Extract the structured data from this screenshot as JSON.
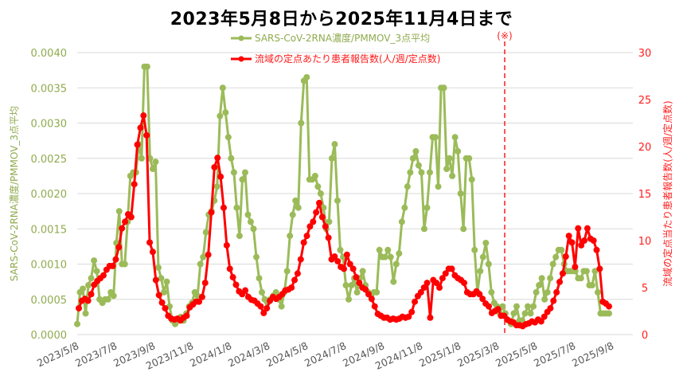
{
  "title": "2023年5月8日から2025年11月4日まで",
  "annotation": "(※)",
  "colors": {
    "green": "#9bbb59",
    "red": "#ff0000",
    "grid": "#d9d9d9",
    "green_text": "#8fab4e",
    "red_text": "#ff2020"
  },
  "chart_data": {
    "type": "line",
    "title": "2023年5月8日から2025年11月4日まで",
    "x_tick_labels": [
      "2023/5/8",
      "2023/7/8",
      "2023/9/8",
      "2023/11/8",
      "2024/1/8",
      "2024/3/8",
      "2024/5/8",
      "2024/7/8",
      "2024/9/8",
      "2024/11/8",
      "2025/1/8",
      "2025/3/8",
      "2025/5/8",
      "2025/7/8",
      "2025/9/8"
    ],
    "ylabel_left": "SARS-CoV-2RNA濃度/PMMOV_3点平均",
    "ylabel_right": "流域の定点当たり患者報告数(人/週/定点数)",
    "ylim_left": [
      0,
      0.004
    ],
    "ylim_right": [
      0,
      30
    ],
    "yticks_left": [
      "0.0000",
      "0.0005",
      "0.0010",
      "0.0015",
      "0.0020",
      "0.0025",
      "0.0030",
      "0.0035",
      "0.0040"
    ],
    "yticks_right": [
      "0",
      "5",
      "10",
      "15",
      "20",
      "25",
      "30"
    ],
    "grid": true,
    "legend_position": "top-center",
    "vertical_marker": {
      "label": "(※)",
      "x_date": "2025/4/20",
      "style": "dashed red"
    },
    "series": [
      {
        "name": "SARS-CoV-2RNA濃度/PMMOV_3点平均",
        "axis": "left",
        "color": "#9bbb59",
        "values": [
          0.00015,
          0.0006,
          0.00065,
          0.0003,
          0.0007,
          0.0008,
          0.00105,
          0.0009,
          0.0005,
          0.00045,
          0.0005,
          0.0005,
          0.0006,
          0.00055,
          0.0013,
          0.00175,
          0.001,
          0.001,
          0.0016,
          0.00225,
          0.0023,
          0.0023,
          0.0027,
          0.0025,
          0.0038,
          0.0038,
          0.0025,
          0.00235,
          0.00245,
          0.00095,
          0.0008,
          0.0006,
          0.00075,
          0.0004,
          0.0002,
          0.00015,
          0.0002,
          0.00025,
          0.0002,
          0.0003,
          0.0004,
          0.00045,
          0.0006,
          0.00055,
          0.001,
          0.0011,
          0.00145,
          0.0017,
          0.00175,
          0.0019,
          0.0021,
          0.0031,
          0.0035,
          0.00315,
          0.0028,
          0.0025,
          0.0023,
          0.0018,
          0.0014,
          0.0022,
          0.0023,
          0.0017,
          0.0016,
          0.0015,
          0.0011,
          0.0008,
          0.0006,
          0.0005,
          0.00045,
          0.0005,
          0.00055,
          0.0006,
          0.0005,
          0.0004,
          0.0006,
          0.0009,
          0.0014,
          0.0017,
          0.0019,
          0.0018,
          0.003,
          0.0036,
          0.00365,
          0.0022,
          0.0022,
          0.00225,
          0.0021,
          0.002,
          0.0018,
          0.0015,
          0.0016,
          0.0025,
          0.0027,
          0.0019,
          0.0012,
          0.0011,
          0.0007,
          0.0005,
          0.0007,
          0.0008,
          0.0006,
          0.0008,
          0.0009,
          0.0007,
          0.0006,
          0.00055,
          0.0006,
          0.0006,
          0.0012,
          0.0011,
          0.0011,
          0.0012,
          0.0011,
          0.00075,
          0.001,
          0.00115,
          0.0016,
          0.0018,
          0.0021,
          0.0023,
          0.0025,
          0.0026,
          0.0024,
          0.0023,
          0.0015,
          0.0018,
          0.0023,
          0.0028,
          0.0028,
          0.0021,
          0.0035,
          0.0035,
          0.00235,
          0.0025,
          0.00225,
          0.0028,
          0.0026,
          0.002,
          0.0015,
          0.0025,
          0.0025,
          0.0022,
          0.0012,
          0.0006,
          0.0009,
          0.0011,
          0.0013,
          0.001,
          0.0006,
          0.00045,
          0.0004,
          0.0003,
          0.0004,
          0.0003,
          0.0002,
          0.00015,
          0.0003,
          0.0004,
          0.0002,
          0.0002,
          0.0003,
          0.0004,
          0.0003,
          0.0004,
          0.0006,
          0.0007,
          0.0008,
          0.0005,
          0.0006,
          0.0008,
          0.001,
          0.0011,
          0.0012,
          0.0012,
          0.001,
          0.0009,
          0.0009,
          0.0009,
          0.0009,
          0.0008,
          0.0008,
          0.0009,
          0.0009,
          0.0007,
          0.0007,
          0.0009,
          0.0006,
          0.0003,
          0.0003,
          0.0003,
          0.0003
        ]
      },
      {
        "name": "流域の定点あたり患者報告数(人/週/定点数)",
        "axis": "right",
        "color": "#ff0000",
        "values": [
          2.8,
          3.6,
          3.8,
          3.6,
          4.3,
          5.3,
          5.7,
          6.0,
          6.3,
          6.9,
          7.3,
          7.3,
          8.0,
          9.3,
          11.3,
          12.0,
          12.8,
          12.5,
          16.0,
          20.2,
          22.0,
          23.3,
          21.2,
          9.8,
          8.8,
          5.8,
          4.2,
          3.4,
          2.8,
          2.0,
          1.7,
          1.6,
          1.7,
          1.5,
          1.8,
          2.0,
          2.9,
          3.2,
          3.5,
          3.5,
          4.0,
          5.5,
          8.5,
          13.0,
          17.8,
          18.8,
          16.8,
          13.5,
          9.5,
          7.0,
          6.1,
          5.3,
          4.6,
          4.3,
          4.7,
          4.0,
          3.7,
          3.6,
          3.3,
          3.0,
          2.3,
          2.8,
          3.6,
          4.0,
          3.8,
          4.0,
          4.3,
          4.7,
          4.8,
          5.0,
          5.8,
          6.5,
          8.0,
          9.8,
          10.5,
          11.5,
          12.0,
          13.0,
          14.0,
          12.5,
          11.5,
          10.3,
          8.0,
          8.3,
          7.8,
          7.2,
          7.0,
          8.5,
          7.5,
          7.0,
          6.1,
          5.5,
          5.0,
          4.8,
          4.3,
          3.8,
          3.0,
          2.2,
          2.0,
          1.8,
          1.8,
          1.6,
          1.7,
          1.6,
          1.7,
          1.9,
          1.8,
          1.9,
          2.4,
          3.5,
          4.1,
          4.5,
          5.0,
          5.5,
          1.8,
          5.8,
          5.5,
          5.0,
          6.0,
          6.5,
          7.0,
          7.0,
          6.3,
          6.0,
          5.8,
          5.5,
          4.5,
          4.3,
          4.3,
          4.6,
          4.3,
          3.8,
          3.3,
          3.0,
          2.3,
          2.5,
          2.7,
          2.0,
          2.0,
          1.6,
          1.4,
          1.3,
          1.0,
          1.0,
          0.9,
          1.1,
          1.2,
          1.4,
          1.3,
          1.6,
          1.4,
          1.9,
          2.4,
          2.8,
          3.6,
          4.5,
          5.6,
          6.5,
          8.3,
          10.5,
          9.8,
          7.2,
          11.3,
          9.5,
          10.0,
          11.3,
          10.2,
          10.0,
          9.0,
          7.0,
          3.5,
          3.3,
          3.0
        ]
      }
    ]
  }
}
